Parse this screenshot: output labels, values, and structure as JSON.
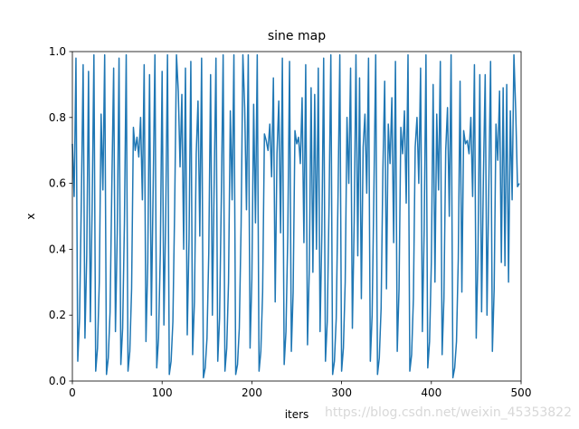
{
  "chart_data": {
    "type": "line",
    "title": "sine map",
    "x_label": "iters",
    "y_label": "x",
    "watermark": "https://blog.csdn.net/weixin_45353822",
    "color": "#1f77b4",
    "xlim": [
      0,
      500
    ],
    "xticks": [
      0,
      100,
      200,
      300,
      400,
      500
    ],
    "ylim": [
      0,
      1
    ],
    "yticks": [
      {
        "value": 0,
        "label": "0.0"
      },
      {
        "value": 0.2,
        "label": "0.2"
      },
      {
        "value": 0.4,
        "label": "0.4"
      },
      {
        "value": 0.6,
        "label": "0.6"
      },
      {
        "value": 0.8,
        "label": "0.8"
      },
      {
        "value": 1,
        "label": "1.0"
      }
    ],
    "x": [
      0,
      2,
      4,
      6,
      8,
      10,
      12,
      14,
      16,
      18,
      20,
      22,
      24,
      26,
      28,
      30,
      32,
      34,
      36,
      38,
      40,
      42,
      44,
      46,
      48,
      50,
      52,
      54,
      56,
      58,
      60,
      62,
      64,
      66,
      68,
      70,
      72,
      74,
      76,
      78,
      80,
      82,
      84,
      86,
      88,
      90,
      92,
      94,
      96,
      98,
      100,
      102,
      104,
      106,
      108,
      110,
      112,
      114,
      116,
      118,
      120,
      122,
      124,
      126,
      128,
      130,
      132,
      134,
      136,
      138,
      140,
      142,
      144,
      146,
      148,
      150,
      152,
      154,
      156,
      158,
      160,
      162,
      164,
      166,
      168,
      170,
      172,
      174,
      176,
      178,
      180,
      182,
      184,
      186,
      188,
      190,
      192,
      194,
      196,
      198,
      200,
      202,
      204,
      206,
      208,
      210,
      212,
      214,
      216,
      218,
      220,
      222,
      224,
      226,
      228,
      230,
      232,
      234,
      236,
      238,
      240,
      242,
      244,
      246,
      248,
      250,
      252,
      254,
      256,
      258,
      260,
      262,
      264,
      266,
      268,
      270,
      272,
      274,
      276,
      278,
      280,
      282,
      284,
      286,
      288,
      290,
      292,
      294,
      296,
      298,
      300,
      302,
      304,
      306,
      308,
      310,
      312,
      314,
      316,
      318,
      320,
      322,
      324,
      326,
      328,
      330,
      332,
      334,
      336,
      338,
      340,
      342,
      344,
      346,
      348,
      350,
      352,
      354,
      356,
      358,
      360,
      362,
      364,
      366,
      368,
      370,
      372,
      374,
      376,
      378,
      380,
      382,
      384,
      386,
      388,
      390,
      392,
      394,
      396,
      398,
      400,
      402,
      404,
      406,
      408,
      410,
      412,
      414,
      416,
      418,
      420,
      422,
      424,
      426,
      428,
      430,
      432,
      434,
      436,
      438,
      440,
      442,
      444,
      446,
      448,
      450,
      452,
      454,
      456,
      458,
      460,
      462,
      464,
      466,
      468,
      470,
      472,
      474,
      476,
      478,
      480,
      482,
      484,
      486,
      488,
      490,
      492,
      494,
      496,
      498
    ],
    "values": [
      0.72,
      0.56,
      0.98,
      0.06,
      0.19,
      0.55,
      0.96,
      0.13,
      0.38,
      0.94,
      0.18,
      0.52,
      0.99,
      0.03,
      0.1,
      0.3,
      0.81,
      0.58,
      0.99,
      0.02,
      0.07,
      0.21,
      0.6,
      0.95,
      0.15,
      0.45,
      0.98,
      0.05,
      0.16,
      0.48,
      0.99,
      0.03,
      0.09,
      0.28,
      0.77,
      0.7,
      0.74,
      0.68,
      0.8,
      0.55,
      0.96,
      0.12,
      0.36,
      0.93,
      0.2,
      0.58,
      0.99,
      0.04,
      0.13,
      0.39,
      0.94,
      0.17,
      0.5,
      0.99,
      0.02,
      0.06,
      0.18,
      0.53,
      0.99,
      0.88,
      0.65,
      0.87,
      0.4,
      0.95,
      0.14,
      0.43,
      0.97,
      0.08,
      0.24,
      0.69,
      0.85,
      0.44,
      0.98,
      0.01,
      0.04,
      0.13,
      0.39,
      0.93,
      0.2,
      0.6,
      0.98,
      0.06,
      0.19,
      0.56,
      0.99,
      0.03,
      0.1,
      0.3,
      0.82,
      0.55,
      0.99,
      0.02,
      0.05,
      0.16,
      0.47,
      0.99,
      0.83,
      0.52,
      0.99,
      0.1,
      0.31,
      0.84,
      0.48,
      0.99,
      0.03,
      0.09,
      0.27,
      0.75,
      0.73,
      0.7,
      0.78,
      0.62,
      0.92,
      0.24,
      0.69,
      0.85,
      0.45,
      0.98,
      0.05,
      0.15,
      0.44,
      0.97,
      0.09,
      0.27,
      0.76,
      0.72,
      0.74,
      0.66,
      0.86,
      0.42,
      0.96,
      0.11,
      0.34,
      0.89,
      0.33,
      0.87,
      0.4,
      0.95,
      0.15,
      0.45,
      0.98,
      0.06,
      0.18,
      0.53,
      0.99,
      0.02,
      0.06,
      0.19,
      0.56,
      0.99,
      0.03,
      0.1,
      0.3,
      0.8,
      0.6,
      0.95,
      0.16,
      0.48,
      0.99,
      0.38,
      0.92,
      0.25,
      0.71,
      0.81,
      0.57,
      0.98,
      0.06,
      0.2,
      0.58,
      0.99,
      0.02,
      0.07,
      0.22,
      0.64,
      0.91,
      0.28,
      0.78,
      0.66,
      0.86,
      0.42,
      0.97,
      0.09,
      0.28,
      0.77,
      0.69,
      0.82,
      0.54,
      0.99,
      0.03,
      0.08,
      0.25,
      0.71,
      0.8,
      0.6,
      0.95,
      0.15,
      0.46,
      0.99,
      0.04,
      0.12,
      0.36,
      0.9,
      0.3,
      0.81,
      0.58,
      0.97,
      0.08,
      0.25,
      0.7,
      0.83,
      0.5,
      0.99,
      0.01,
      0.04,
      0.12,
      0.37,
      0.91,
      0.27,
      0.76,
      0.72,
      0.73,
      0.69,
      0.8,
      0.56,
      0.96,
      0.13,
      0.39,
      0.93,
      0.21,
      0.62,
      0.93,
      0.2,
      0.59,
      0.97,
      0.09,
      0.28,
      0.78,
      0.67,
      0.88,
      0.36,
      0.89,
      0.35,
      0.9,
      0.3,
      0.82,
      0.55,
      0.99,
      0.82,
      0.59,
      0.6
    ]
  }
}
